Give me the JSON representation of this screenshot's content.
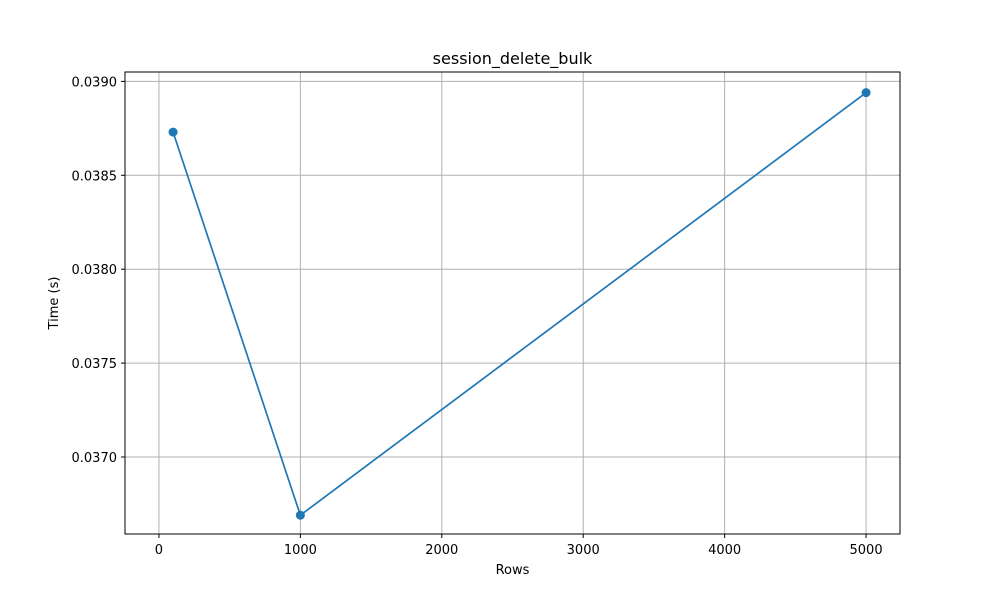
{
  "chart_data": {
    "type": "line",
    "title": "session_delete_bulk",
    "xlabel": "Rows",
    "ylabel": "Time (s)",
    "x": [
      100,
      1000,
      5000
    ],
    "series": [
      {
        "values": [
          0.03873,
          0.03669,
          0.03894
        ],
        "color": "#1f77b4",
        "marker": "circle"
      }
    ],
    "xlim": [
      -240,
      5240
    ],
    "ylim": [
      0.03659,
      0.03905
    ],
    "xticks": [
      0,
      1000,
      2000,
      3000,
      4000,
      5000
    ],
    "xtick_labels": [
      "0",
      "1000",
      "2000",
      "3000",
      "4000",
      "5000"
    ],
    "yticks": [
      0.037,
      0.0375,
      0.038,
      0.0385,
      0.039
    ],
    "ytick_labels": [
      "0.0370",
      "0.0375",
      "0.0380",
      "0.0385",
      "0.0390"
    ],
    "grid": true,
    "grid_color": "#b0b0b0"
  }
}
